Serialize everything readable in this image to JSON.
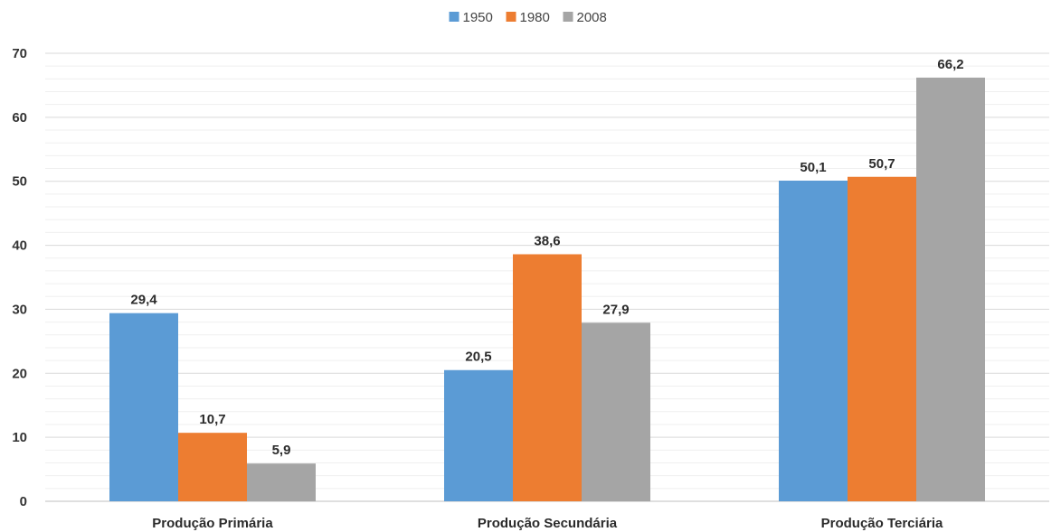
{
  "chart_data": {
    "type": "bar",
    "title": "",
    "xlabel": "",
    "ylabel": "",
    "categories": [
      "Produção Primária",
      "Produção Secundária",
      "Produção Terciária"
    ],
    "series": [
      {
        "name": "1950",
        "color": "#5b9bd5",
        "values": [
          29.4,
          20.5,
          50.1
        ],
        "labels": [
          "29,4",
          "20,5",
          "50,1"
        ]
      },
      {
        "name": "1980",
        "color": "#ed7d31",
        "values": [
          10.7,
          38.6,
          50.7
        ],
        "labels": [
          "10,7",
          "38,6",
          "50,7"
        ]
      },
      {
        "name": "2008",
        "color": "#a5a5a5",
        "values": [
          5.9,
          27.9,
          66.2
        ],
        "labels": [
          "5,9",
          "27,9",
          "66,2"
        ]
      }
    ],
    "ylim": [
      0,
      70
    ],
    "yticks": [
      0,
      10,
      20,
      30,
      40,
      50,
      60,
      70
    ],
    "grid": true,
    "legend": "top-center"
  }
}
